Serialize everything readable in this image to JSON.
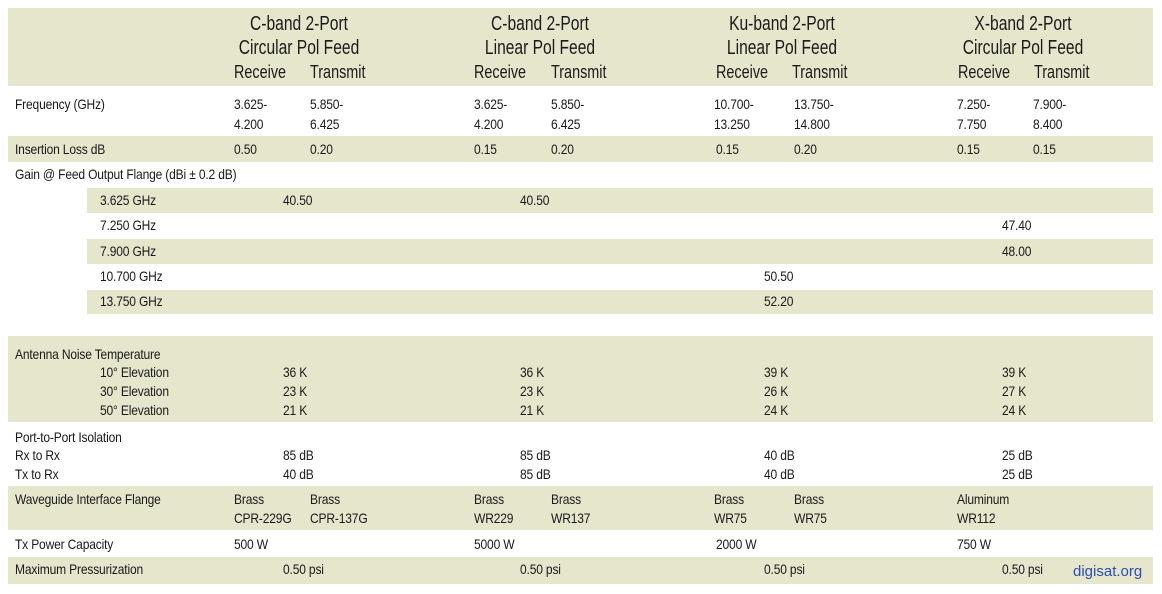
{
  "columns": [
    {
      "title_line1": "C-band 2-Port",
      "title_line2": "Circular Pol Feed",
      "receive": "Receive",
      "transmit": "Transmit"
    },
    {
      "title_line1": "C-band 2-Port",
      "title_line2": "Linear Pol Feed",
      "receive": "Receive",
      "transmit": "Transmit"
    },
    {
      "title_line1": "Ku-band 2-Port",
      "title_line2": "Linear Pol Feed",
      "receive": "Receive",
      "transmit": "Transmit"
    },
    {
      "title_line1": "X-band 2-Port",
      "title_line2": "Circular Pol Feed",
      "receive": "Receive",
      "transmit": "Transmit"
    }
  ],
  "frequency": {
    "label": "Frequency (GHz)",
    "values": [
      [
        "3.625-",
        "4.200",
        "5.850-",
        "6.425"
      ],
      [
        "3.625-",
        "4.200",
        "5.850-",
        "6.425"
      ],
      [
        "10.700-",
        "13.250",
        "13.750-",
        "14.800"
      ],
      [
        "7.250-",
        "7.750",
        "7.900-",
        "8.400"
      ]
    ]
  },
  "insertion_loss": {
    "label": "Insertion Loss dB",
    "values": [
      [
        "0.50",
        "0.20"
      ],
      [
        "0.15",
        "0.20"
      ],
      [
        "0.15",
        "0.20"
      ],
      [
        "0.15",
        "0.15"
      ]
    ]
  },
  "gain": {
    "label": "Gain @ Feed Output Flange (dBi ± 0.2 dB)",
    "rows": [
      {
        "freq": "3.625 GHz",
        "values": [
          "40.50",
          "40.50",
          "",
          ""
        ]
      },
      {
        "freq": "7.250 GHz",
        "values": [
          "",
          "",
          "",
          "47.40"
        ]
      },
      {
        "freq": "7.900 GHz",
        "values": [
          "",
          "",
          "",
          "48.00"
        ]
      },
      {
        "freq": "10.700 GHz",
        "values": [
          "",
          "",
          "50.50",
          ""
        ]
      },
      {
        "freq": "13.750 GHz",
        "values": [
          "",
          "",
          "52.20",
          ""
        ]
      }
    ]
  },
  "noise_temp": {
    "label": "Antenna Noise Temperature",
    "rows": [
      {
        "elev": "10° Elevation",
        "values": [
          "36 K",
          "36 K",
          "39 K",
          "39 K"
        ]
      },
      {
        "elev": "30° Elevation",
        "values": [
          "23 K",
          "23 K",
          "26 K",
          "27 K"
        ]
      },
      {
        "elev": "50° Elevation",
        "values": [
          "21 K",
          "21 K",
          "24 K",
          "24 K"
        ]
      }
    ]
  },
  "isolation": {
    "label": "Port-to-Port Isolation",
    "rows": [
      {
        "name": "Rx to Rx",
        "values": [
          "85 dB",
          "85 dB",
          "40 dB",
          "25 dB"
        ]
      },
      {
        "name": "Tx to Rx",
        "values": [
          "40 dB",
          "85 dB",
          "40 dB",
          "25 dB"
        ]
      }
    ]
  },
  "flange": {
    "label": "Waveguide Interface Flange",
    "values": [
      [
        "Brass",
        "CPR-229G",
        "Brass",
        "CPR-137G"
      ],
      [
        "Brass",
        "WR229",
        "Brass",
        "WR137"
      ],
      [
        "Brass",
        "WR75",
        "Brass",
        "WR75"
      ],
      [
        "Aluminum",
        "WR112",
        "",
        ""
      ]
    ]
  },
  "tx_power": {
    "label": "Tx Power Capacity",
    "values": [
      "500 W",
      "5000 W",
      "2000 W",
      "750 W"
    ]
  },
  "pressure": {
    "label": "Maximum Pressurization",
    "values": [
      "0.50 psi",
      "0.50 psi",
      "0.50 psi",
      "0.50 psi"
    ]
  },
  "watermark": "digisat.org",
  "colors": {
    "band": "#e6e6cd",
    "watermark": "#2a4fae"
  }
}
